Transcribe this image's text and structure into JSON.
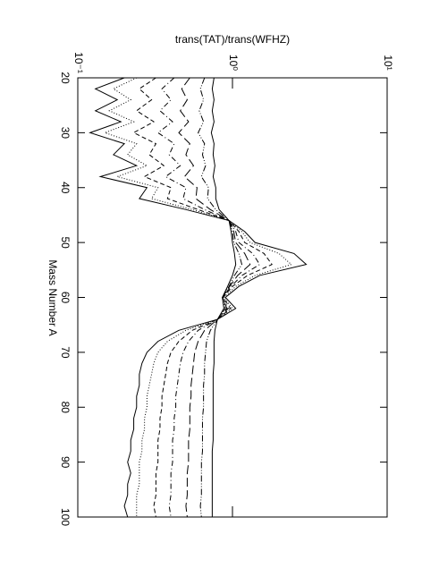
{
  "chart_data": {
    "type": "line",
    "xlabel": "Mass Number A",
    "ylabel": "trans(TAT)/trans(WFHZ)",
    "x": [
      20,
      22,
      24,
      26,
      28,
      30,
      32,
      34,
      36,
      38,
      40,
      42,
      44,
      46,
      48,
      50,
      52,
      54,
      56,
      58,
      60,
      62,
      64,
      66,
      68,
      70,
      72,
      74,
      76,
      78,
      80,
      82,
      84,
      86,
      88,
      90,
      92,
      94,
      96,
      98,
      100
    ],
    "xlim": [
      20,
      100
    ],
    "xticks": [
      20,
      30,
      40,
      50,
      60,
      70,
      80,
      90,
      100
    ],
    "ylim": [
      0.1,
      10
    ],
    "ylog": true,
    "yticks": [
      {
        "value": 0.1,
        "label": "10⁻¹"
      },
      {
        "value": 1,
        "label": "10⁰"
      },
      {
        "value": 10,
        "label": "10¹"
      }
    ],
    "series": [
      {
        "color": "#000000",
        "dash": "solid",
        "values": [
          0.2,
          0.13,
          0.18,
          0.13,
          0.19,
          0.12,
          0.2,
          0.17,
          0.24,
          0.14,
          0.28,
          0.25,
          0.5,
          0.95,
          1.2,
          1.4,
          2.5,
          3.0,
          1.5,
          1.1,
          0.9,
          1.05,
          0.8,
          0.45,
          0.33,
          0.28,
          0.26,
          0.25,
          0.25,
          0.24,
          0.24,
          0.23,
          0.23,
          0.22,
          0.22,
          0.21,
          0.22,
          0.21,
          0.21,
          0.2,
          0.21
        ]
      },
      {
        "color": "#000000",
        "dash": "dotted",
        "values": [
          0.24,
          0.17,
          0.22,
          0.16,
          0.23,
          0.15,
          0.24,
          0.21,
          0.28,
          0.18,
          0.33,
          0.3,
          0.55,
          0.95,
          1.15,
          1.3,
          2.0,
          2.4,
          1.4,
          1.05,
          0.88,
          1.0,
          0.8,
          0.5,
          0.38,
          0.33,
          0.31,
          0.3,
          0.29,
          0.28,
          0.28,
          0.27,
          0.27,
          0.26,
          0.26,
          0.25,
          0.25,
          0.25,
          0.24,
          0.24,
          0.24
        ]
      },
      {
        "color": "#000000",
        "dash": "dashed",
        "values": [
          0.32,
          0.25,
          0.3,
          0.24,
          0.31,
          0.23,
          0.32,
          0.29,
          0.36,
          0.27,
          0.4,
          0.38,
          0.6,
          0.95,
          1.1,
          1.2,
          1.6,
          1.8,
          1.25,
          1.0,
          0.87,
          0.97,
          0.8,
          0.55,
          0.45,
          0.4,
          0.38,
          0.37,
          0.36,
          0.35,
          0.35,
          0.34,
          0.34,
          0.33,
          0.33,
          0.33,
          0.32,
          0.32,
          0.32,
          0.31,
          0.32
        ]
      },
      {
        "color": "#000000",
        "dash": "dashdot",
        "values": [
          0.42,
          0.35,
          0.4,
          0.34,
          0.41,
          0.33,
          0.42,
          0.39,
          0.46,
          0.37,
          0.5,
          0.48,
          0.66,
          0.95,
          1.05,
          1.1,
          1.35,
          1.5,
          1.15,
          0.98,
          0.86,
          0.94,
          0.8,
          0.6,
          0.52,
          0.48,
          0.46,
          0.45,
          0.44,
          0.43,
          0.43,
          0.42,
          0.42,
          0.41,
          0.41,
          0.41,
          0.4,
          0.4,
          0.4,
          0.39,
          0.4
        ]
      },
      {
        "color": "#000000",
        "dash": "longdash",
        "values": [
          0.53,
          0.47,
          0.51,
          0.46,
          0.52,
          0.45,
          0.53,
          0.5,
          0.56,
          0.49,
          0.59,
          0.58,
          0.72,
          0.95,
          1.02,
          1.05,
          1.2,
          1.3,
          1.08,
          0.96,
          0.86,
          0.92,
          0.8,
          0.66,
          0.6,
          0.57,
          0.56,
          0.55,
          0.54,
          0.54,
          0.53,
          0.53,
          0.53,
          0.52,
          0.52,
          0.52,
          0.51,
          0.51,
          0.51,
          0.5,
          0.51
        ]
      },
      {
        "color": "#000000",
        "dash": "dashdotdot",
        "values": [
          0.66,
          0.62,
          0.65,
          0.61,
          0.65,
          0.6,
          0.66,
          0.64,
          0.67,
          0.63,
          0.7,
          0.69,
          0.78,
          0.95,
          1.0,
          1.02,
          1.1,
          1.15,
          1.03,
          0.95,
          0.86,
          0.9,
          0.8,
          0.72,
          0.68,
          0.67,
          0.66,
          0.66,
          0.65,
          0.65,
          0.65,
          0.64,
          0.64,
          0.64,
          0.64,
          0.63,
          0.63,
          0.63,
          0.63,
          0.62,
          0.63
        ]
      },
      {
        "color": "#000000",
        "dash": "solid",
        "values": [
          0.76,
          0.74,
          0.76,
          0.74,
          0.76,
          0.73,
          0.76,
          0.75,
          0.77,
          0.75,
          0.78,
          0.78,
          0.82,
          0.95,
          0.98,
          1.0,
          1.03,
          1.05,
          1.0,
          0.93,
          0.86,
          0.88,
          0.8,
          0.77,
          0.76,
          0.76,
          0.76,
          0.75,
          0.75,
          0.75,
          0.75,
          0.75,
          0.75,
          0.75,
          0.74,
          0.74,
          0.74,
          0.74,
          0.74,
          0.74,
          0.74
        ]
      }
    ]
  }
}
